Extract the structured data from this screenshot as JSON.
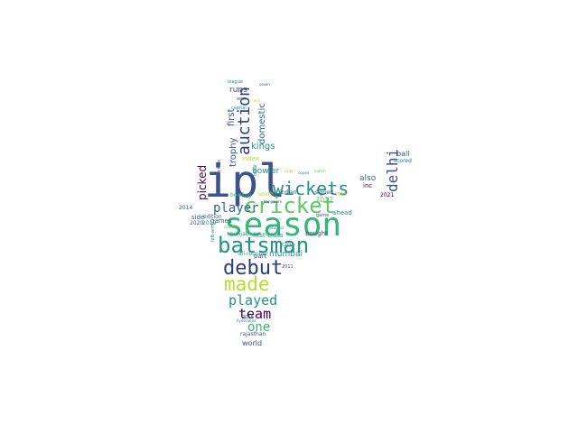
{
  "cloud": {
    "colors": {
      "purple": "#440154",
      "indigo": "#3b528b",
      "blue": "#31688e",
      "teal": "#21918c",
      "green": "#35b779",
      "lime": "#5ec962",
      "yellow": "#b5de2b",
      "navy": "#2c3e7a",
      "gray": "#7f7f7f"
    },
    "words": [
      {
        "text": "ipl",
        "color": "indigo"
      },
      {
        "text": "season",
        "color": "green"
      },
      {
        "text": "cricket",
        "color": "lime"
      },
      {
        "text": "wickets",
        "color": "teal"
      },
      {
        "text": "batsman",
        "color": "teal"
      },
      {
        "text": "debut",
        "color": "navy"
      },
      {
        "text": "made",
        "color": "yellow"
      },
      {
        "text": "played",
        "color": "teal"
      },
      {
        "text": "auction",
        "color": "navy"
      },
      {
        "text": "player",
        "color": "blue"
      },
      {
        "text": "delhi",
        "color": "indigo"
      },
      {
        "text": "team",
        "color": "purple"
      },
      {
        "text": "one",
        "color": "green"
      },
      {
        "text": "picked",
        "color": "purple"
      },
      {
        "text": "first",
        "color": "indigo"
      },
      {
        "text": "runs",
        "color": "indigo"
      },
      {
        "text": "domestic",
        "color": "blue"
      },
      {
        "text": "kings",
        "color": "teal"
      },
      {
        "text": "trophy",
        "color": "indigo"
      },
      {
        "text": "bowler",
        "color": "teal"
      },
      {
        "text": "also",
        "color": "blue"
      },
      {
        "text": "2012",
        "color": "lime"
      },
      {
        "text": "mumbai",
        "color": "teal"
      },
      {
        "text": "ahead",
        "color": "teal"
      },
      {
        "text": "bought",
        "color": "indigo"
      },
      {
        "text": "inc",
        "color": "purple"
      },
      {
        "text": "ball",
        "color": "indigo"
      },
      {
        "text": "scored",
        "color": "teal"
      },
      {
        "text": "2021",
        "color": "purple"
      },
      {
        "text": "punjab",
        "color": "teal"
      },
      {
        "text": "first-class",
        "color": "teal"
      },
      {
        "text": "all-rounder",
        "color": "teal"
      },
      {
        "text": "part",
        "color": "indigo"
      },
      {
        "text": "games",
        "color": "indigo"
      },
      {
        "text": "side",
        "color": "indigo"
      },
      {
        "text": "edition",
        "color": "blue"
      },
      {
        "text": "2014",
        "color": "indigo"
      },
      {
        "text": "2020",
        "color": "indigo"
      },
      {
        "text": "2019",
        "color": "teal"
      },
      {
        "text": "index",
        "color": "yellow"
      },
      {
        "text": "indian",
        "color": "indigo"
      },
      {
        "text": "signed",
        "color": "indigo"
      },
      {
        "text": "south",
        "color": "yellow"
      },
      {
        "text": "bowling",
        "color": "green"
      },
      {
        "text": "2018",
        "color": "indigo"
      },
      {
        "text": "2011",
        "color": "indigo"
      },
      {
        "text": "t20",
        "color": "teal"
      },
      {
        "text": "world",
        "color": "indigo"
      },
      {
        "text": "rajasthan",
        "color": "indigo"
      },
      {
        "text": "game",
        "color": "indigo"
      },
      {
        "text": "league",
        "color": "teal"
      },
      {
        "text": "royal",
        "color": "teal"
      },
      {
        "text": "franchise",
        "color": "indigo"
      },
      {
        "text": "left-arm",
        "color": "teal"
      },
      {
        "text": "2015",
        "color": "yellow"
      },
      {
        "text": "capital",
        "color": "teal"
      },
      {
        "text": "cup",
        "color": "yellow"
      },
      {
        "text": "won",
        "color": "indigo"
      },
      {
        "text": "squad",
        "color": "teal"
      },
      {
        "text": "match",
        "color": "lime"
      },
      {
        "text": "seven",
        "color": "indigo"
      },
      {
        "text": "retained",
        "color": "teal"
      },
      {
        "text": "bangalore",
        "color": "indigo"
      },
      {
        "text": "hyderabad",
        "color": "teal"
      },
      {
        "text": "october",
        "color": "lime"
      },
      {
        "text": "ranji",
        "color": "yellow"
      }
    ]
  }
}
